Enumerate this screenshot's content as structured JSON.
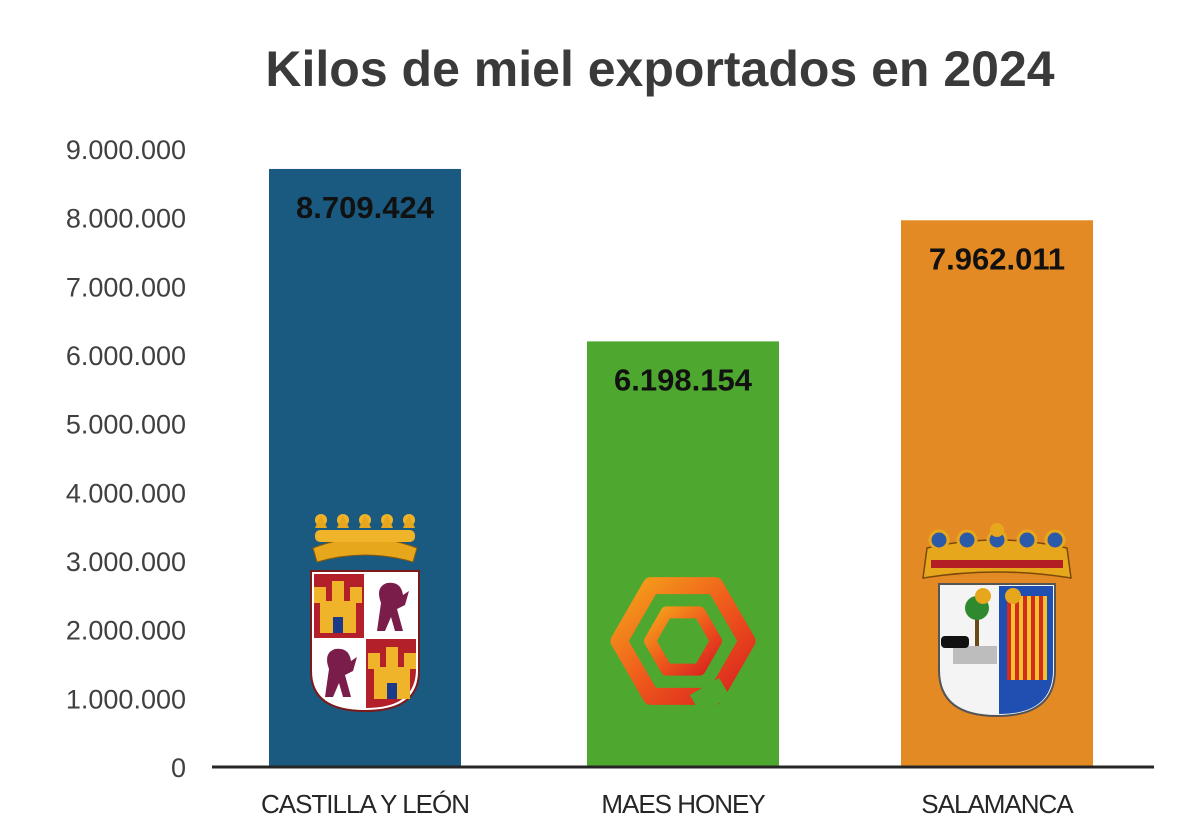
{
  "chart_data": {
    "type": "bar",
    "title": "Kilos de miel exportados en 2024",
    "categories": [
      "CASTILLA Y LEÓN",
      "MAES HONEY",
      "SALAMANCA"
    ],
    "values": [
      8709424,
      6198154,
      7962011
    ],
    "value_labels": [
      "8.709.424",
      "6.198.154",
      "7.962.011"
    ],
    "bar_colors": [
      "#1b5a80",
      "#4ea72e",
      "#e48a24"
    ],
    "bar_icons": [
      "castilla-y-leon-coat-of-arms-icon",
      "maes-honey-hexagon-logo-icon",
      "salamanca-coat-of-arms-icon"
    ],
    "ylim": [
      0,
      9000000
    ],
    "yticks": [
      0,
      1000000,
      2000000,
      3000000,
      4000000,
      5000000,
      6000000,
      7000000,
      8000000,
      9000000
    ],
    "ytick_labels": [
      "0",
      "1.000.000",
      "2.000.000",
      "3.000.000",
      "4.000.000",
      "5.000.000",
      "6.000.000",
      "7.000.000",
      "8.000.000",
      "9.000.000"
    ],
    "grid": false,
    "legend": "none"
  }
}
